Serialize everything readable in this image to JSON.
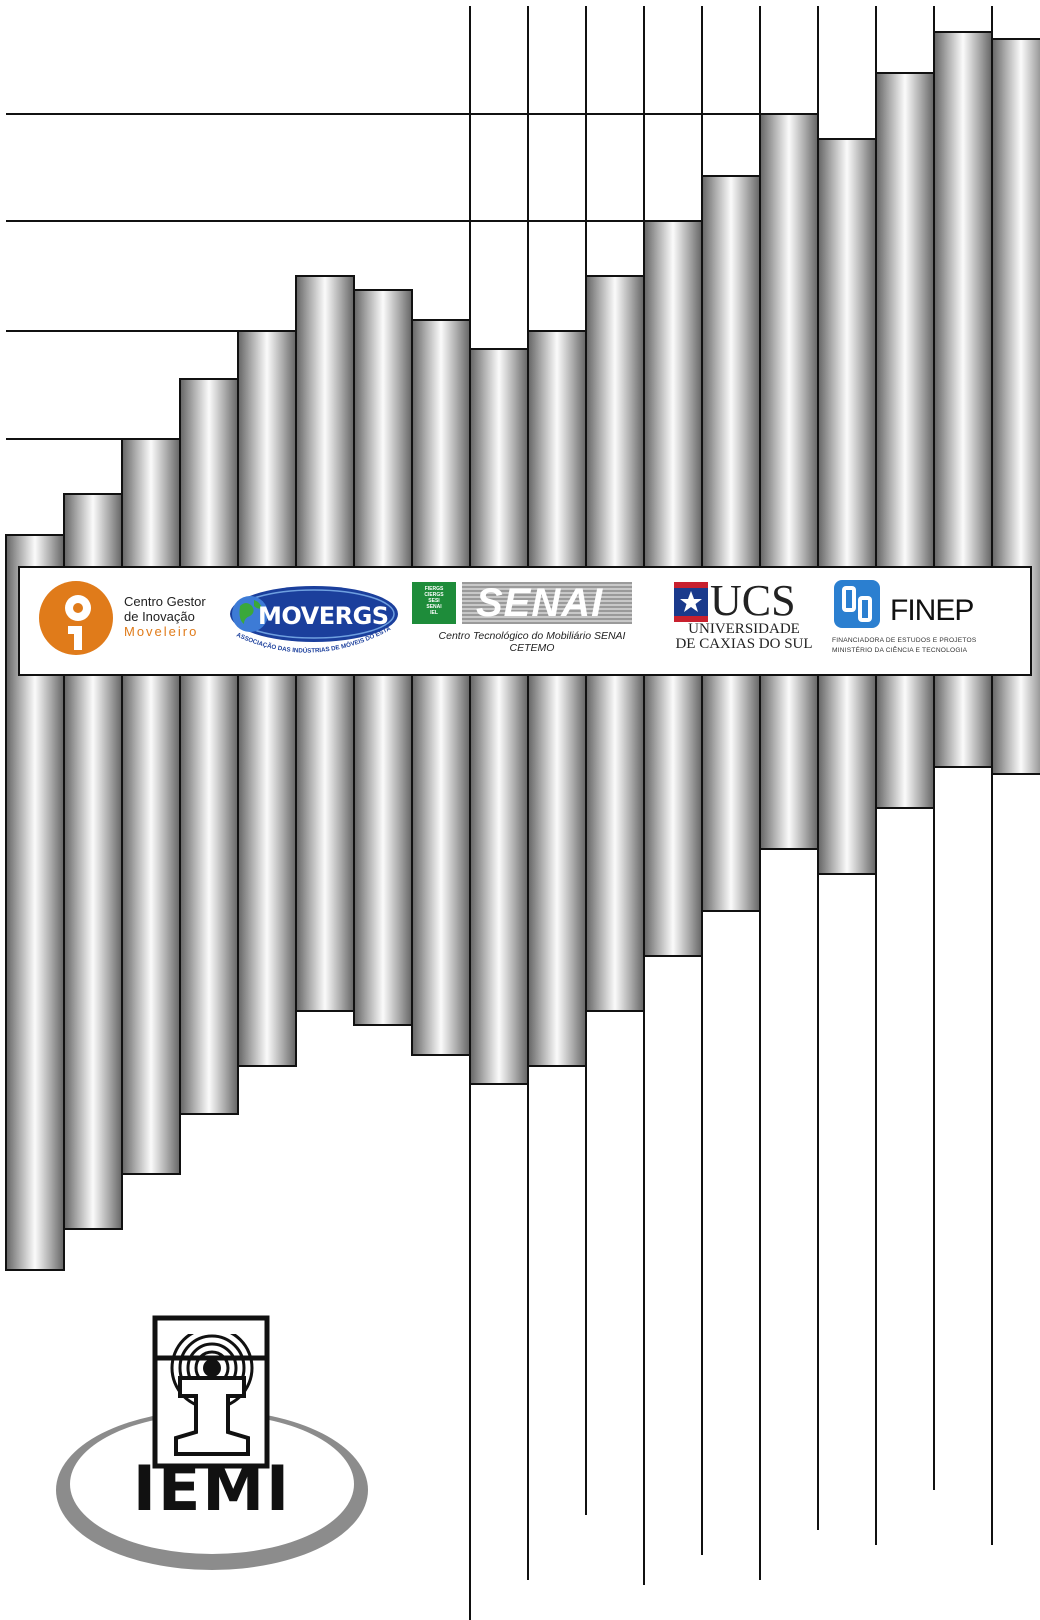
{
  "palette": {
    "bar_dark": "#6a6a6a",
    "bar_light": "#fafafa",
    "line": "#111111",
    "cgi_orange": "#e07b1a",
    "movergs_blue": "#1b3f9c",
    "senai_green": "#1e8c3a",
    "ucs_blue": "#1a3a8c",
    "ucs_red": "#c8202e",
    "finep_blue": "#2b7fd0"
  },
  "sponsors": {
    "cgi": {
      "line1": "Centro Gestor",
      "line2": "de Inovação",
      "line3": "Moveleiro"
    },
    "movergs": {
      "name": "MOVERGS",
      "tagline": "ASSOCIAÇÃO DAS INDÚSTRIAS DE MÓVEIS DO ESTADO DO RIO GRANDE DO SUL"
    },
    "senai": {
      "box": [
        "FIERGS",
        "CIERGS",
        "SESI",
        "SENAI",
        "IEL"
      ],
      "name": "SENAI",
      "caption_line1": "Centro Tecnológico do Mobiliário SENAI",
      "caption_line2": "CETEMO"
    },
    "ucs": {
      "name": "UCS",
      "line1": "UNIVERSIDADE",
      "line2": "DE CAXIAS DO SUL"
    },
    "finep": {
      "name": "FINEP",
      "line1": "FINANCIADORA DE ESTUDOS E PROJETOS",
      "line2": "MINISTÉRIO DA CIÊNCIA E TECNOLOGIA"
    }
  },
  "publisher": {
    "name": "IEMI"
  }
}
